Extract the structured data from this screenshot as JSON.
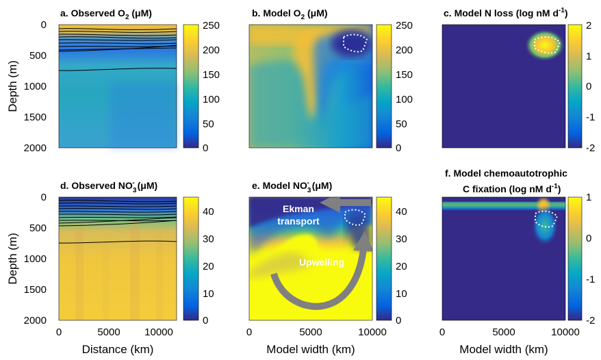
{
  "chart_data": [
    {
      "type": "heatmap",
      "panel": "a",
      "title_main": "a. Observed O",
      "title_sub": "2",
      "title_unit": " (μM)",
      "ylabel": "Depth (m)",
      "xlabel": "",
      "xlim": [
        0,
        11800
      ],
      "ylim": [
        2000,
        0
      ],
      "yticks": [
        "0",
        "500",
        "1000",
        "1500",
        "2000"
      ],
      "xticks": [],
      "colorbar": {
        "min": 0,
        "max": 250,
        "ticks": [
          "250",
          "200",
          "150",
          "100",
          "50",
          "0"
        ]
      },
      "contours": true
    },
    {
      "type": "heatmap",
      "panel": "b",
      "title_main": "b. Model O",
      "title_sub": "2",
      "title_unit": " (μM)",
      "xlim": [
        0,
        10000
      ],
      "ylim": [
        2000,
        0
      ],
      "colorbar": {
        "min": 0,
        "max": 250,
        "ticks": [
          "250",
          "200",
          "150",
          "100",
          "50",
          "0"
        ]
      },
      "dashed_outline": "anoxic zone near x≈9000 km, depth≈250 m"
    },
    {
      "type": "heatmap",
      "panel": "c",
      "title_main": "c. Model N loss (log nM d",
      "title_sup": "-1",
      "title_end": ")",
      "xlim": [
        0,
        10000
      ],
      "ylim": [
        2000,
        0
      ],
      "colorbar": {
        "min": -2,
        "max": 2,
        "ticks": [
          "2",
          "1",
          "0",
          "-1",
          "-2"
        ]
      }
    },
    {
      "type": "heatmap",
      "panel": "d",
      "title_main": "d. Observed NO",
      "title_sub": "3",
      "title_sup": "-",
      "title_unit": " (μM)",
      "ylabel": "Depth (m)",
      "xlabel": "Distance (km)",
      "xlim": [
        0,
        11800
      ],
      "ylim": [
        2000,
        0
      ],
      "yticks": [
        "0",
        "500",
        "1000",
        "1500",
        "2000"
      ],
      "xticks": [
        "0",
        "5000",
        "10000"
      ],
      "colorbar": {
        "min": 0,
        "max": 45,
        "ticks": [
          "40",
          "30",
          "20",
          "10",
          "0"
        ]
      },
      "contours": true
    },
    {
      "type": "heatmap",
      "panel": "e",
      "title_main": "e. Model NO",
      "title_sub": "3",
      "title_sup": "-",
      "title_unit": " (μM)",
      "xlabel": "Model width (km)",
      "xlim": [
        0,
        10000
      ],
      "ylim": [
        2000,
        0
      ],
      "xticks": [
        "0",
        "5000",
        "10000"
      ],
      "colorbar": {
        "min": 0,
        "max": 45,
        "ticks": [
          "40",
          "30",
          "20",
          "10",
          "0"
        ]
      },
      "annotations": [
        "Ekman",
        "transport",
        "Upwelling"
      ]
    },
    {
      "type": "heatmap",
      "panel": "f",
      "title_line1": "f. Model chemoautotrophic",
      "title_line2": "C fixation (log nM d",
      "title_sup": "-1",
      "title_end": ")",
      "xlabel": "Model width (km)",
      "xlim": [
        0,
        10000
      ],
      "ylim": [
        2000,
        0
      ],
      "xticks": [
        "0",
        "5000",
        "10000"
      ],
      "colorbar": {
        "min": -2,
        "max": 1,
        "ticks": [
          "1",
          "0",
          "-1",
          "-2"
        ]
      }
    }
  ],
  "colors": {
    "dark_blue": "#352a87",
    "blue": "#1f65e0",
    "teal": "#21a8b8",
    "green": "#6cc26c",
    "yellow_orange": "#f5c038",
    "yellow": "#f9fb0e",
    "arrow_gray": "#808080"
  }
}
